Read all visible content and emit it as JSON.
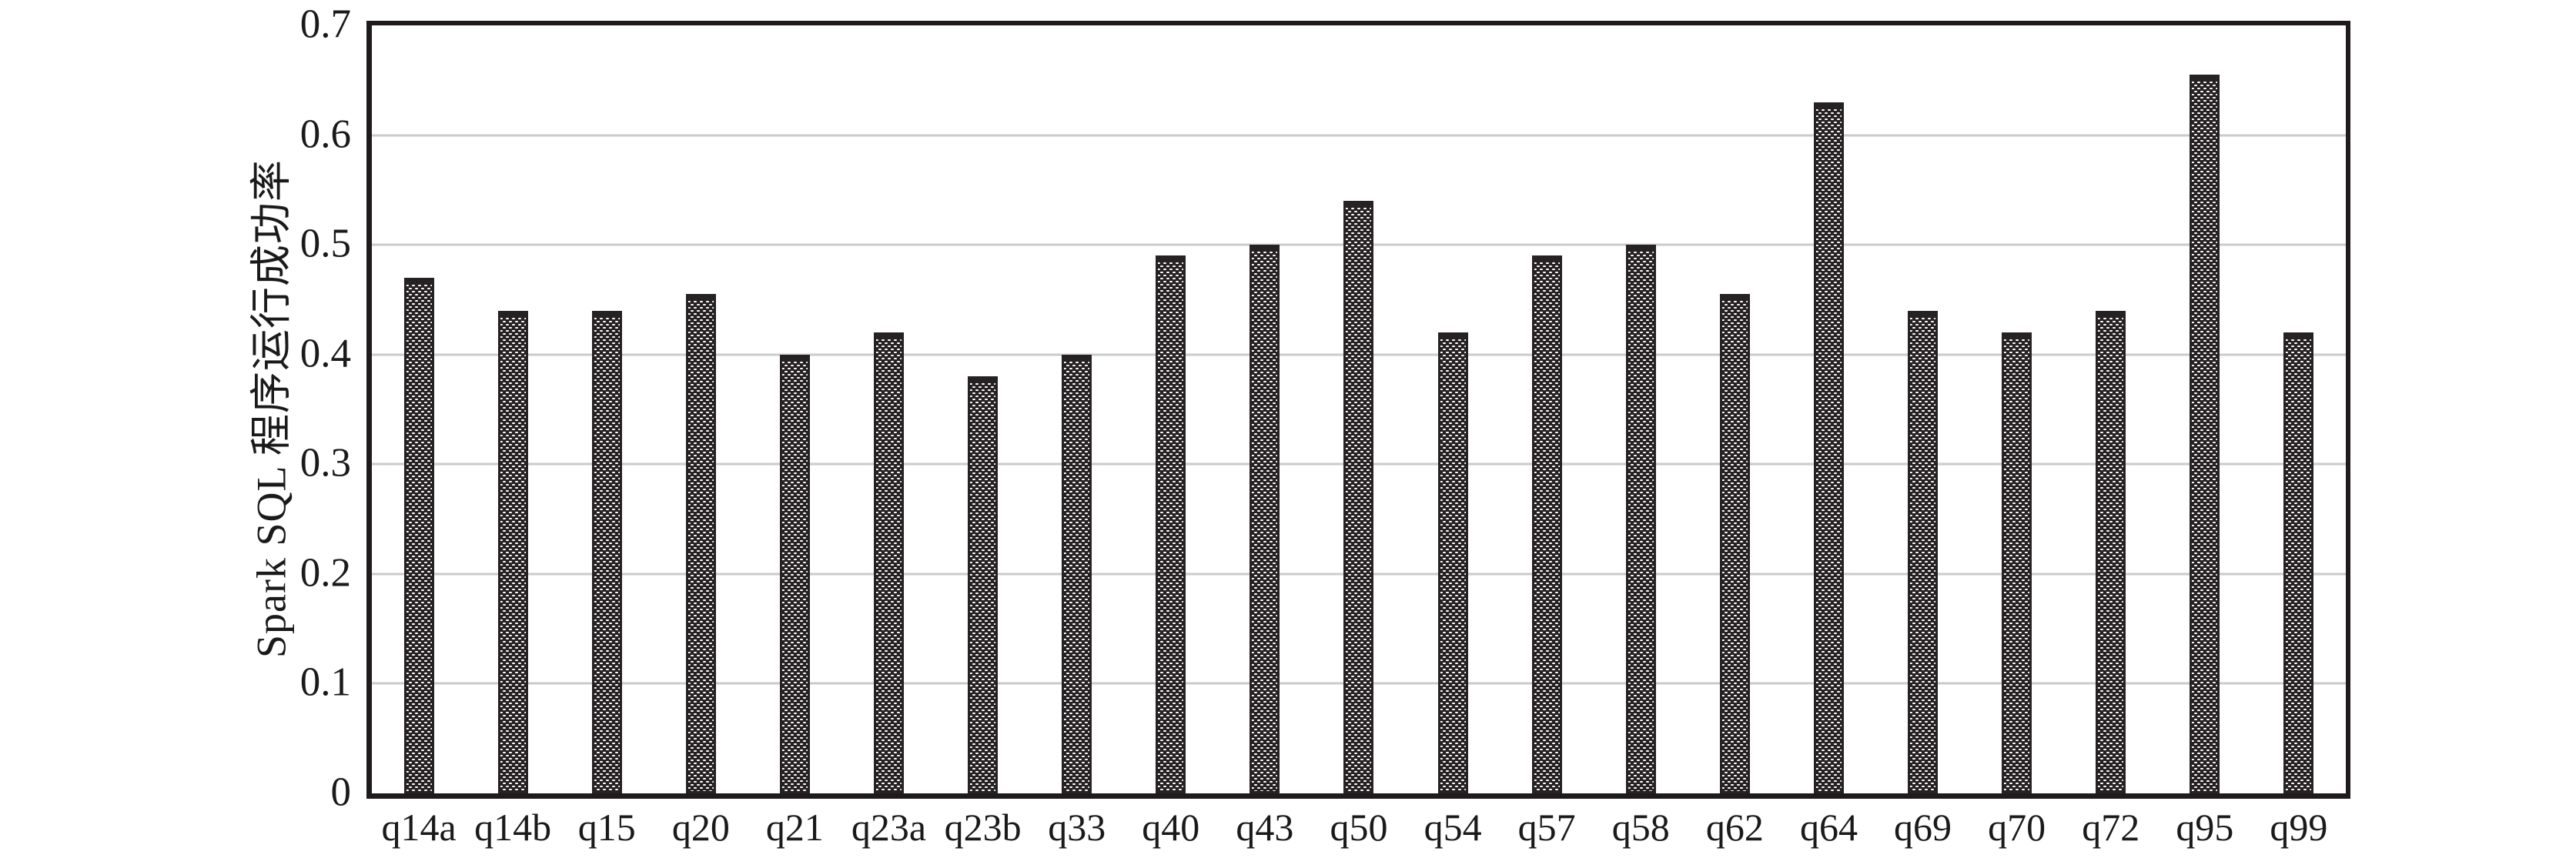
{
  "chart_data": {
    "type": "bar",
    "title": "",
    "xlabel": "",
    "ylabel": "Spark SQL 程序运行成功率",
    "categories": [
      "q14a",
      "q14b",
      "q15",
      "q20",
      "q21",
      "q23a",
      "q23b",
      "q33",
      "q40",
      "q43",
      "q50",
      "q54",
      "q57",
      "q58",
      "q62",
      "q64",
      "q69",
      "q70",
      "q72",
      "q95",
      "q99"
    ],
    "values": [
      0.47,
      0.44,
      0.44,
      0.455,
      0.4,
      0.42,
      0.38,
      0.4,
      0.49,
      0.5,
      0.54,
      0.42,
      0.49,
      0.5,
      0.455,
      0.63,
      0.44,
      0.42,
      0.44,
      0.655,
      0.42
    ],
    "ylim": [
      0,
      0.7
    ],
    "yticks": [
      0,
      0.1,
      0.2,
      0.3,
      0.4,
      0.5,
      0.6,
      0.7
    ],
    "ytick_labels": [
      "0",
      "0.1",
      "0.2",
      "0.3",
      "0.4",
      "0.5",
      "0.6",
      "0.7"
    ],
    "grid": "horizontal",
    "legend": "none",
    "colors": {
      "bar_fill": "#262122",
      "bar_pattern": "white-dot-halftone",
      "gridline": "#cbcbcb",
      "axis_frame": "#1f1b1c",
      "text": "#1a1a1a",
      "background": "#ffffff"
    }
  }
}
